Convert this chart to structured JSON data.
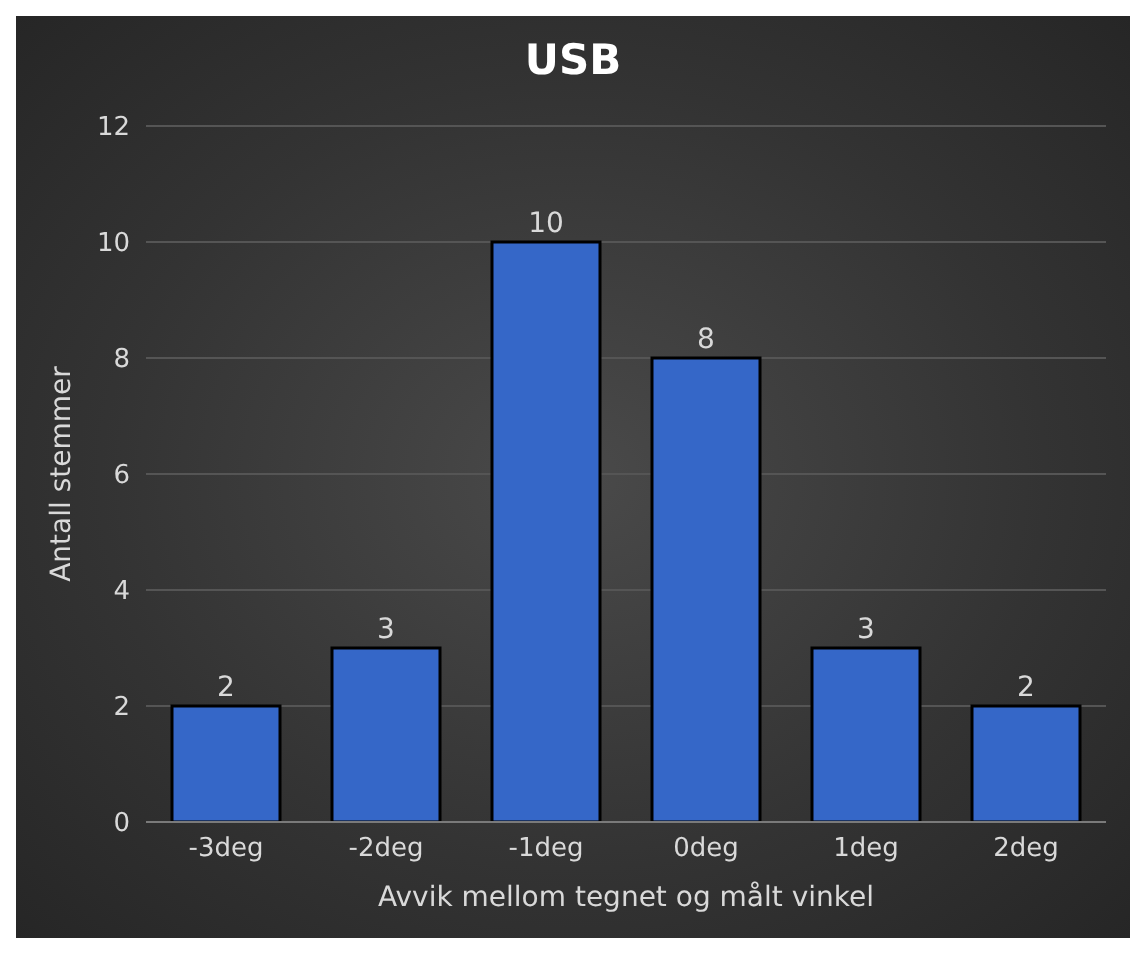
{
  "chart_data": {
    "type": "bar",
    "title": "USB",
    "xlabel": "Avvik mellom tegnet og målt vinkel",
    "ylabel": "Antall stemmer",
    "categories": [
      "-3deg",
      "-2deg",
      "-1deg",
      "0deg",
      "1deg",
      "2deg"
    ],
    "values": [
      2,
      3,
      10,
      8,
      3,
      2
    ],
    "color": "#3567c8",
    "ylim": [
      0,
      12
    ],
    "yticks": [
      0,
      2,
      4,
      6,
      8,
      10,
      12
    ],
    "grid": "y",
    "data_labels": true
  }
}
